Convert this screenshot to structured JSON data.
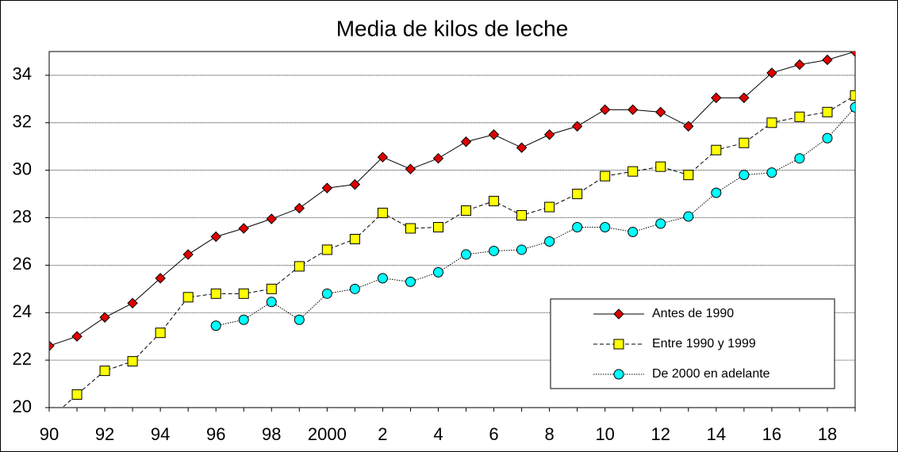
{
  "chart_data": {
    "type": "line",
    "title": "Media de kilos de leche",
    "categories": [
      "90",
      null,
      "92",
      null,
      "94",
      null,
      "96",
      null,
      "98",
      null,
      "2000",
      null,
      "2",
      null,
      "4",
      null,
      "6",
      null,
      "8",
      null,
      "10",
      null,
      "12",
      null,
      "14",
      null,
      "16",
      null,
      "18",
      null
    ],
    "ylim": [
      20,
      35
    ],
    "yticks": [
      20,
      22,
      24,
      26,
      28,
      30,
      32,
      34
    ],
    "grid": true,
    "legend": "lower right",
    "series": [
      {
        "name": "Antes de 1990",
        "color": "#e00000",
        "marker": "diamond",
        "line_style": "solid",
        "values": [
          22.6,
          23.0,
          23.8,
          24.4,
          25.45,
          26.45,
          27.2,
          27.55,
          27.95,
          28.4,
          29.25,
          29.4,
          30.55,
          30.05,
          30.5,
          31.2,
          31.5,
          30.95,
          31.5,
          31.85,
          32.55,
          32.55,
          32.45,
          31.85,
          33.05,
          33.05,
          34.1,
          34.45,
          34.65,
          35.0
        ]
      },
      {
        "name": "Entre 1990 y 1999",
        "color": "#ffff00",
        "marker": "square",
        "line_style": "dashed",
        "values": [
          19.5,
          20.55,
          21.55,
          21.95,
          23.15,
          24.65,
          24.8,
          24.8,
          25.0,
          25.95,
          26.65,
          27.1,
          28.2,
          27.55,
          27.6,
          28.3,
          28.7,
          28.1,
          28.45,
          29.0,
          29.75,
          29.95,
          30.15,
          29.8,
          30.85,
          31.15,
          32.0,
          32.25,
          32.45,
          33.15
        ]
      },
      {
        "name": "De 2000 en adelante",
        "color": "#00ffff",
        "marker": "circle",
        "line_style": "dotted",
        "values": [
          null,
          null,
          null,
          null,
          null,
          null,
          23.45,
          23.7,
          24.45,
          23.7,
          24.8,
          25.0,
          25.45,
          25.3,
          25.7,
          26.45,
          26.6,
          26.65,
          27.0,
          27.6,
          27.6,
          27.4,
          27.75,
          28.05,
          29.05,
          29.8,
          29.9,
          30.5,
          31.35,
          32.65
        ]
      }
    ]
  }
}
